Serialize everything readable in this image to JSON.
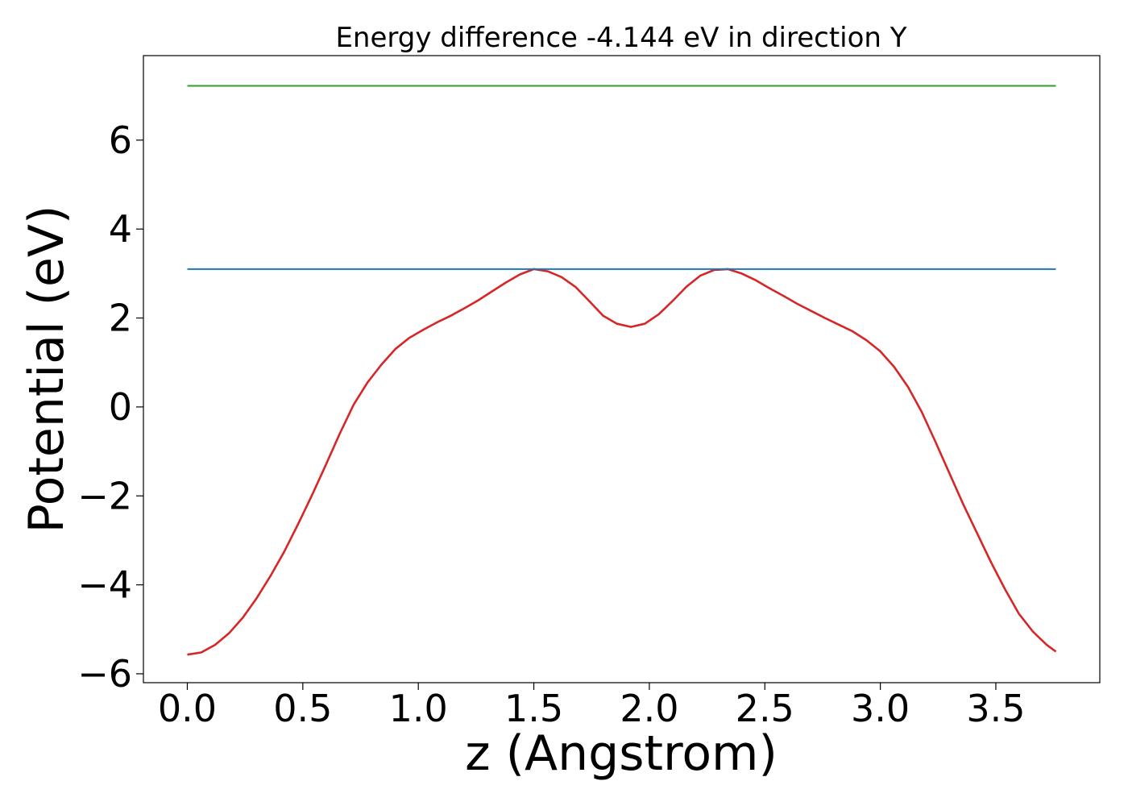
{
  "chart_data": {
    "type": "line",
    "title": "Energy difference -4.144 eV in direction Y",
    "xlabel": "z (Angstrom)",
    "ylabel": "Potential (eV)",
    "xlim": [
      -0.19,
      3.95
    ],
    "ylim": [
      -6.2,
      7.9
    ],
    "xticks": [
      0.0,
      0.5,
      1.0,
      1.5,
      2.0,
      2.5,
      3.0,
      3.5
    ],
    "xtick_labels": [
      "0.0",
      "0.5",
      "1.0",
      "1.5",
      "2.0",
      "2.5",
      "3.0",
      "3.5"
    ],
    "yticks": [
      -6,
      -4,
      -2,
      0,
      2,
      4,
      6
    ],
    "ytick_labels": [
      "−6",
      "−4",
      "−2",
      "0",
      "2",
      "4",
      "6"
    ],
    "grid": false,
    "series": [
      {
        "color": "#d62728",
        "x": [
          0.0,
          0.06,
          0.12,
          0.18,
          0.24,
          0.3,
          0.36,
          0.42,
          0.48,
          0.54,
          0.6,
          0.66,
          0.72,
          0.78,
          0.84,
          0.9,
          0.96,
          1.02,
          1.08,
          1.14,
          1.2,
          1.26,
          1.32,
          1.38,
          1.44,
          1.5,
          1.56,
          1.62,
          1.68,
          1.74,
          1.8,
          1.86,
          1.92,
          1.98,
          2.04,
          2.1,
          2.16,
          2.22,
          2.28,
          2.34,
          2.4,
          2.46,
          2.52,
          2.58,
          2.64,
          2.7,
          2.76,
          2.82,
          2.88,
          2.94,
          3.0,
          3.06,
          3.12,
          3.18,
          3.24,
          3.3,
          3.36,
          3.42,
          3.48,
          3.54,
          3.6,
          3.66,
          3.72,
          3.76
        ],
        "y": [
          -5.57,
          -5.52,
          -5.35,
          -5.09,
          -4.74,
          -4.3,
          -3.8,
          -3.25,
          -2.63,
          -1.98,
          -1.3,
          -0.6,
          0.05,
          0.55,
          0.95,
          1.3,
          1.55,
          1.73,
          1.9,
          2.05,
          2.22,
          2.4,
          2.6,
          2.8,
          2.98,
          3.1,
          3.05,
          2.92,
          2.7,
          2.38,
          2.05,
          1.87,
          1.8,
          1.87,
          2.08,
          2.38,
          2.7,
          2.95,
          3.08,
          3.1,
          3.0,
          2.85,
          2.67,
          2.5,
          2.32,
          2.16,
          2.0,
          1.85,
          1.7,
          1.5,
          1.25,
          0.9,
          0.45,
          -0.12,
          -0.8,
          -1.5,
          -2.2,
          -2.85,
          -3.5,
          -4.1,
          -4.65,
          -5.05,
          -5.35,
          -5.5
        ]
      },
      {
        "color": "#1f77b4",
        "x": [
          0.0,
          3.76
        ],
        "y": [
          3.1,
          3.1
        ]
      },
      {
        "color": "#2ca02c",
        "x": [
          0.0,
          3.76
        ],
        "y": [
          7.22,
          7.22
        ]
      }
    ]
  }
}
